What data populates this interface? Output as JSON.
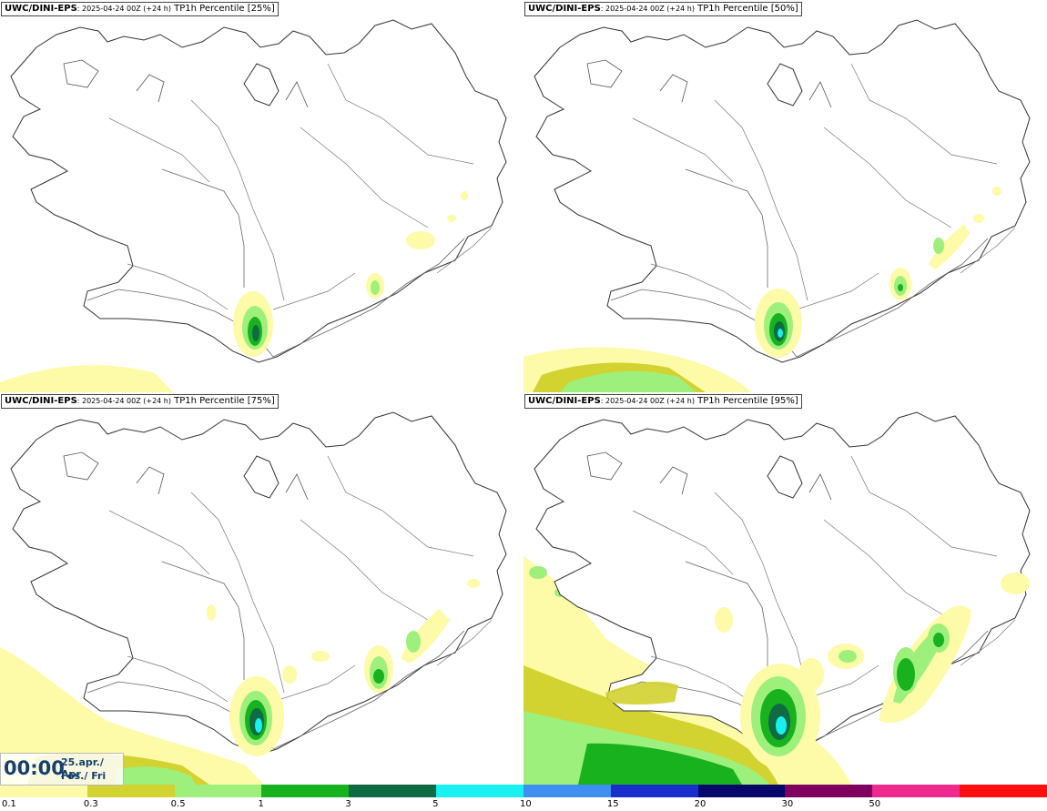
{
  "panels": [
    {
      "model": "UWC/DINI-EPS",
      "meta": ": 2025-04-24 00Z (+24 h)",
      "param": " TP1h Percentile [25%]"
    },
    {
      "model": "UWC/DINI-EPS",
      "meta": ": 2025-04-24 00Z (+24 h)",
      "param": " TP1h Percentile [50%]"
    },
    {
      "model": "UWC/DINI-EPS",
      "meta": ": 2025-04-24 00Z (+24 h)",
      "param": " TP1h Percentile [75%]"
    },
    {
      "model": "UWC/DINI-EPS",
      "meta": ": 2025-04-24 00Z (+24 h)",
      "param": " TP1h Percentile [95%]"
    }
  ],
  "valid_time": {
    "time": "00:00",
    "date_line": "25.apr./ Apr",
    "day_line": "Fös./ Fri"
  },
  "legend": {
    "colors": [
      "#fdfaa8",
      "#d2d230",
      "#9ef07c",
      "#19b21f",
      "#0f6b43",
      "#19f0f0",
      "#3f8ff0",
      "#1a2ecc",
      "#06066b",
      "#800060",
      "#ee2a8c",
      "#ff1010"
    ],
    "labels": [
      "0.1",
      "0.3",
      "0.5",
      "1",
      "3",
      "5",
      "10",
      "15",
      "20",
      "30",
      "50"
    ]
  },
  "precip_levels": {
    "c01": "#fdfaa8",
    "c03": "#d2d230",
    "c05": "#9ef07c",
    "c1": "#19b21f",
    "c3": "#0f6b43",
    "c5": "#19f0f0"
  }
}
